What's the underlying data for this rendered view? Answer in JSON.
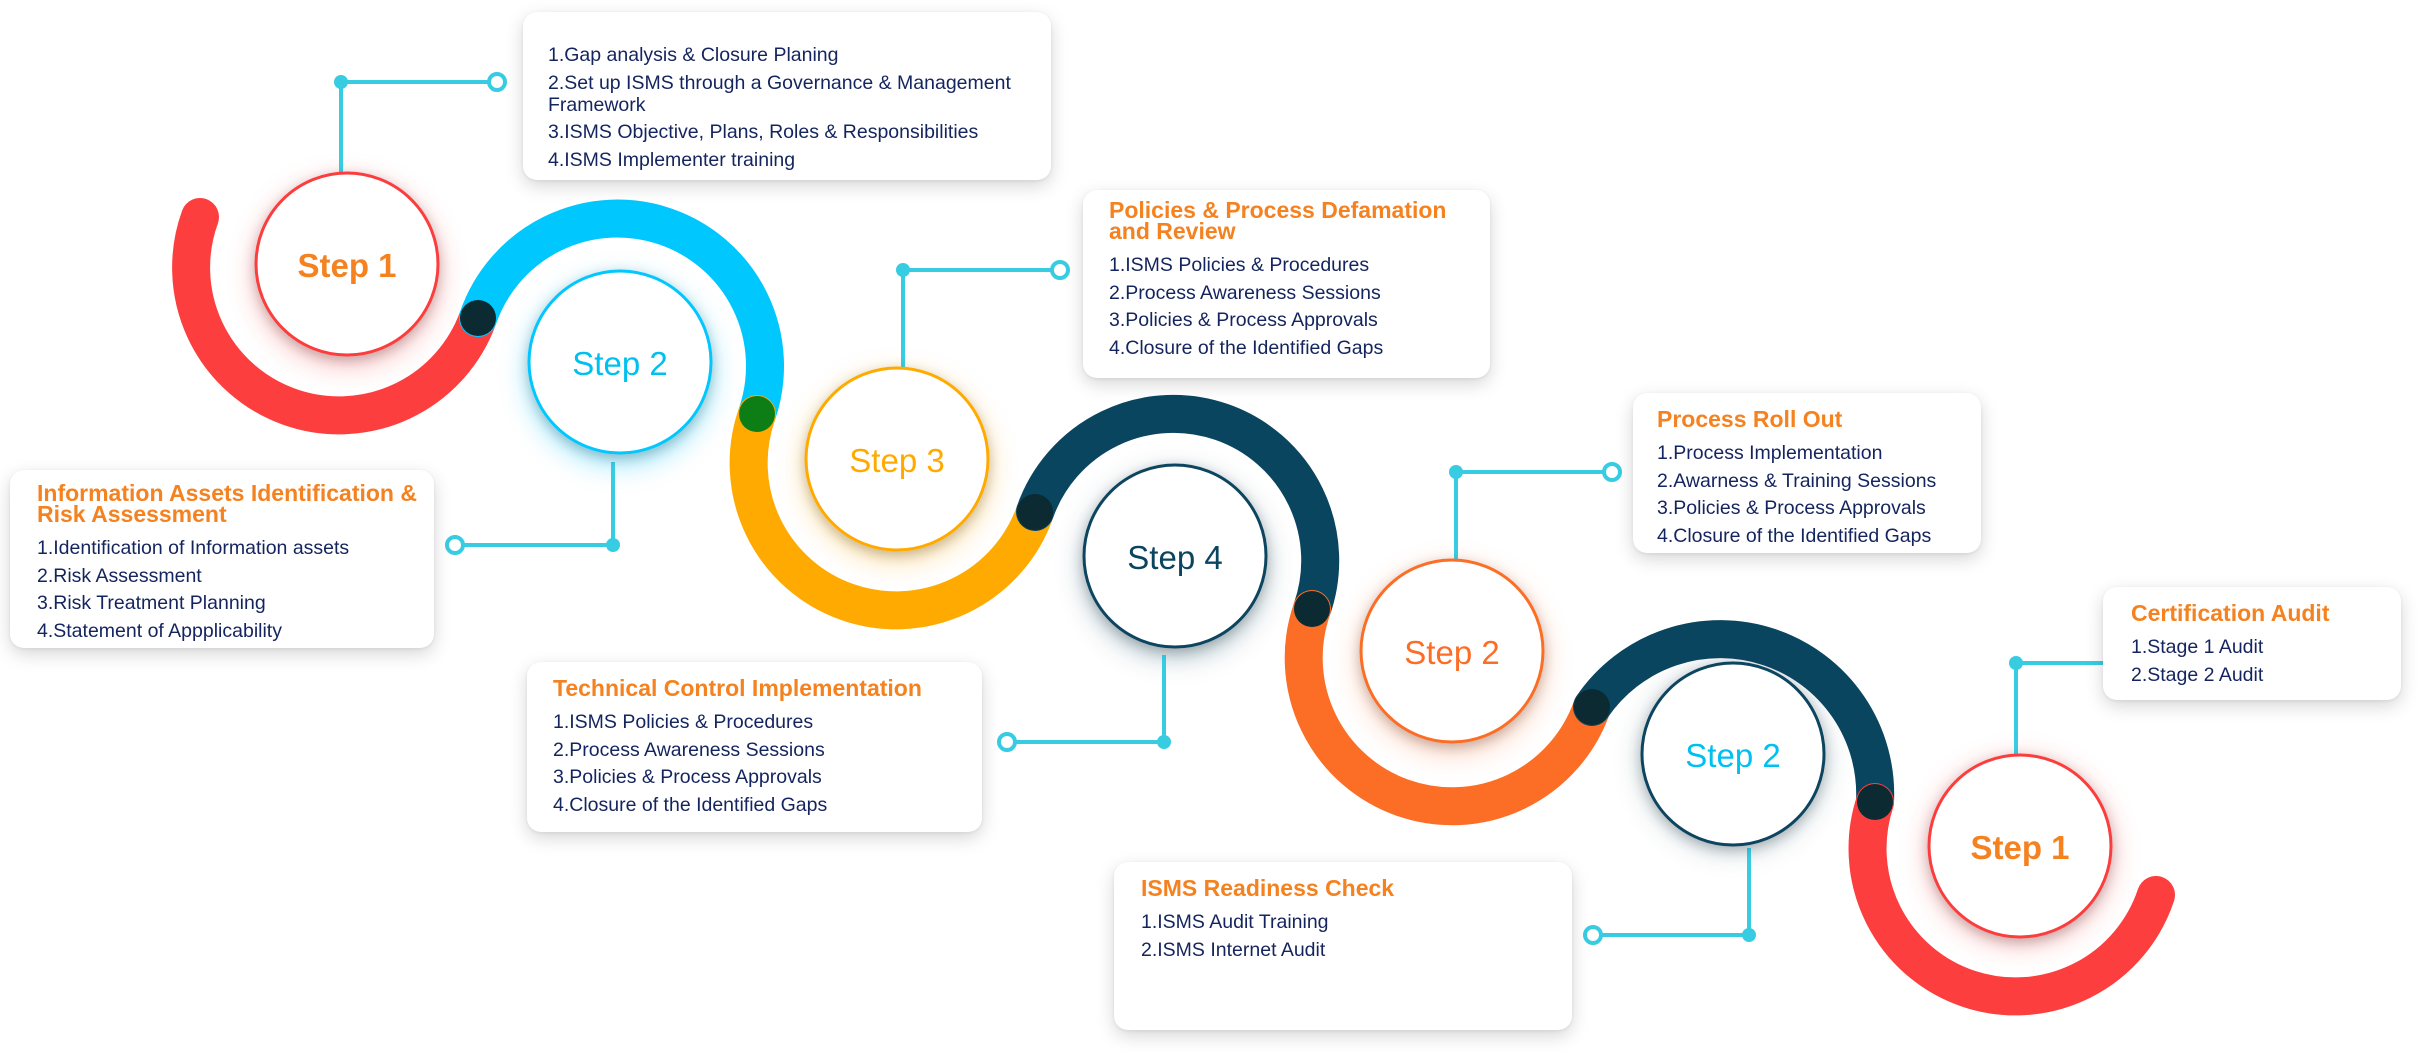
{
  "colors": {
    "red": "#fc3e3e",
    "cyan": "#00c7fd",
    "yellow": "#ffaa00",
    "navy": "#0a4560",
    "orange": "#fc6d25",
    "title_orange": "#f58220",
    "text_navy": "#14245e",
    "connector": "#38cce2"
  },
  "steps": [
    {
      "label": "Step 1",
      "color": "#f58220",
      "bold": true
    },
    {
      "label": "Step 2",
      "color": "#00c0f0",
      "bold": false
    },
    {
      "label": "Step 3",
      "color": "#ffaa00",
      "bold": false
    },
    {
      "label": "Step 4",
      "color": "#0a4560",
      "bold": false
    },
    {
      "label": "Step 2",
      "color": "#fc6d25",
      "bold": false
    },
    {
      "label": "Step 2",
      "color": "#00c0f0",
      "bold": false
    },
    {
      "label": "Step 1",
      "color": "#f58220",
      "bold": true
    }
  ],
  "cards": {
    "gap": {
      "title": "",
      "items": [
        "1.Gap analysis & Closure Planing",
        "2.Set up ISMS through a Governance & Management Framework",
        "3.ISMS Objective, Plans, Roles & Responsibilities",
        "4.ISMS Implementer training"
      ]
    },
    "assets": {
      "title": "Information Assets Identification & Risk Assessment",
      "items": [
        "1.Identification of Information assets",
        "2.Risk Assessment",
        "3.Risk Treatment Planning",
        "4.Statement of Appplicability"
      ]
    },
    "policies": {
      "title": "Policies & Process Defamation and Review",
      "items": [
        "1.ISMS Policies & Procedures",
        "2.Process Awareness Sessions",
        "3.Policies & Process Approvals",
        "4.Closure of the Identified Gaps"
      ]
    },
    "technical": {
      "title": "Technical Control Implementation",
      "items": [
        "1.ISMS Policies & Procedures",
        "2.Process Awareness Sessions",
        "3.Policies & Process Approvals",
        "4.Closure of the Identified Gaps"
      ]
    },
    "rollout": {
      "title": "Process Roll Out",
      "items": [
        "1.Process Implementation",
        "2.Awarness & Training Sessions",
        "3.Policies & Process Approvals",
        "4.Closure of the Identified Gaps"
      ]
    },
    "readiness": {
      "title": "ISMS Readiness Check",
      "items": [
        "1.ISMS Audit Training",
        "2.ISMS Internet Audit"
      ]
    },
    "certification": {
      "title": "Certification Audit",
      "items": [
        "1.Stage 1 Audit",
        "2.Stage 2 Audit"
      ]
    }
  }
}
